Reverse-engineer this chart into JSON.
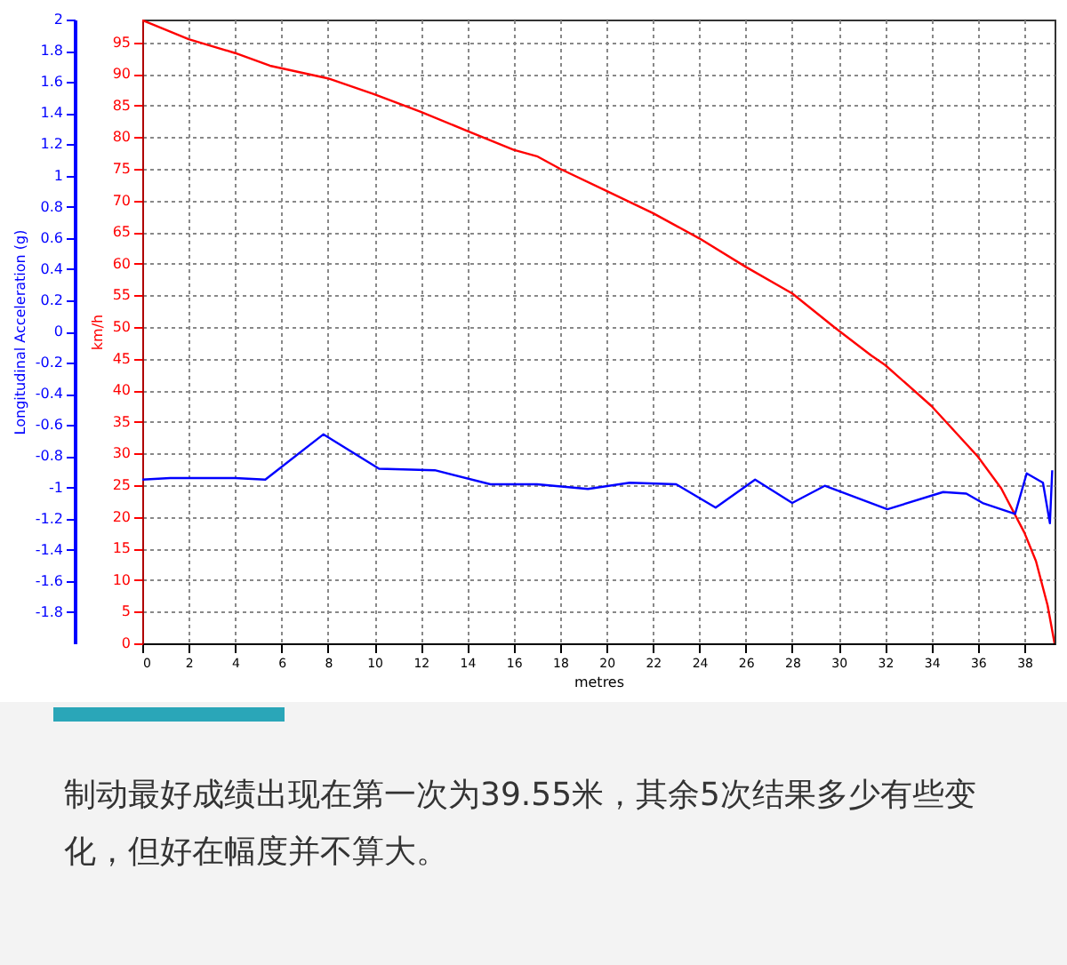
{
  "chart_data": {
    "type": "line",
    "xlabel": "metres",
    "ylabel": "km/h",
    "y2label": "Longitudinal Acceleration (g)",
    "xlim": [
      0,
      39.3
    ],
    "xticks": [
      0,
      2,
      4,
      6,
      8,
      10,
      12,
      14,
      16,
      18,
      20,
      22,
      24,
      26,
      28,
      30,
      32,
      34,
      36,
      38
    ],
    "ylim": [
      0,
      98.6
    ],
    "yticks": [
      0,
      5,
      10,
      15,
      20,
      25,
      30,
      35,
      40,
      45,
      50,
      55,
      60,
      65,
      70,
      75,
      80,
      85,
      90,
      95
    ],
    "y2lim": [
      -2,
      2
    ],
    "y2ticks": [
      -1.8,
      -1.6,
      -1.4,
      -1.2,
      -1,
      -0.8,
      -0.6,
      -0.4,
      -0.2,
      0,
      0.2,
      0.4,
      0.6,
      0.8,
      1,
      1.2,
      1.4,
      1.6,
      1.8,
      2
    ],
    "grid": true,
    "series": [
      {
        "color": "#ff0000",
        "x": [
          0,
          2,
          4,
          5.5,
          8,
          10,
          12,
          14,
          16,
          17,
          18,
          20,
          22,
          23,
          24,
          26,
          28,
          29.8,
          31.4,
          32,
          34,
          36,
          37,
          38,
          38.5,
          39,
          39.3
        ],
        "values": [
          98.5,
          95.5,
          93.3,
          91.3,
          89.3,
          86.8,
          84,
          81,
          78,
          77,
          75,
          71.5,
          68,
          66,
          64,
          59.5,
          55.3,
          50,
          45.5,
          44,
          37.5,
          29.5,
          24.5,
          17.5,
          13,
          6,
          0
        ]
      },
      {
        "color": "#0000ff",
        "axis": "y2",
        "x": [
          0,
          1.2,
          4,
          5.3,
          7.8,
          10.2,
          12.6,
          15,
          17,
          19.2,
          21,
          23,
          24.7,
          26.4,
          28,
          29.4,
          32.1,
          34.5,
          35.5,
          36.2,
          37.6,
          38.1,
          38.8,
          39.1,
          39.2
        ],
        "values": [
          -0.95,
          -0.94,
          -0.94,
          -0.95,
          -0.66,
          -0.88,
          -0.89,
          -0.98,
          -0.98,
          -1.01,
          -0.97,
          -0.98,
          -1.13,
          -0.95,
          -1.1,
          -0.99,
          -1.14,
          -1.03,
          -1.04,
          -1.1,
          -1.17,
          -0.91,
          -0.97,
          -1.23,
          -0.89
        ]
      }
    ],
    "annotations": [
      "制动最好成绩出现在第一次为39.55米，其余5次结果多少有些变化，但好在幅度并不算大。"
    ]
  }
}
